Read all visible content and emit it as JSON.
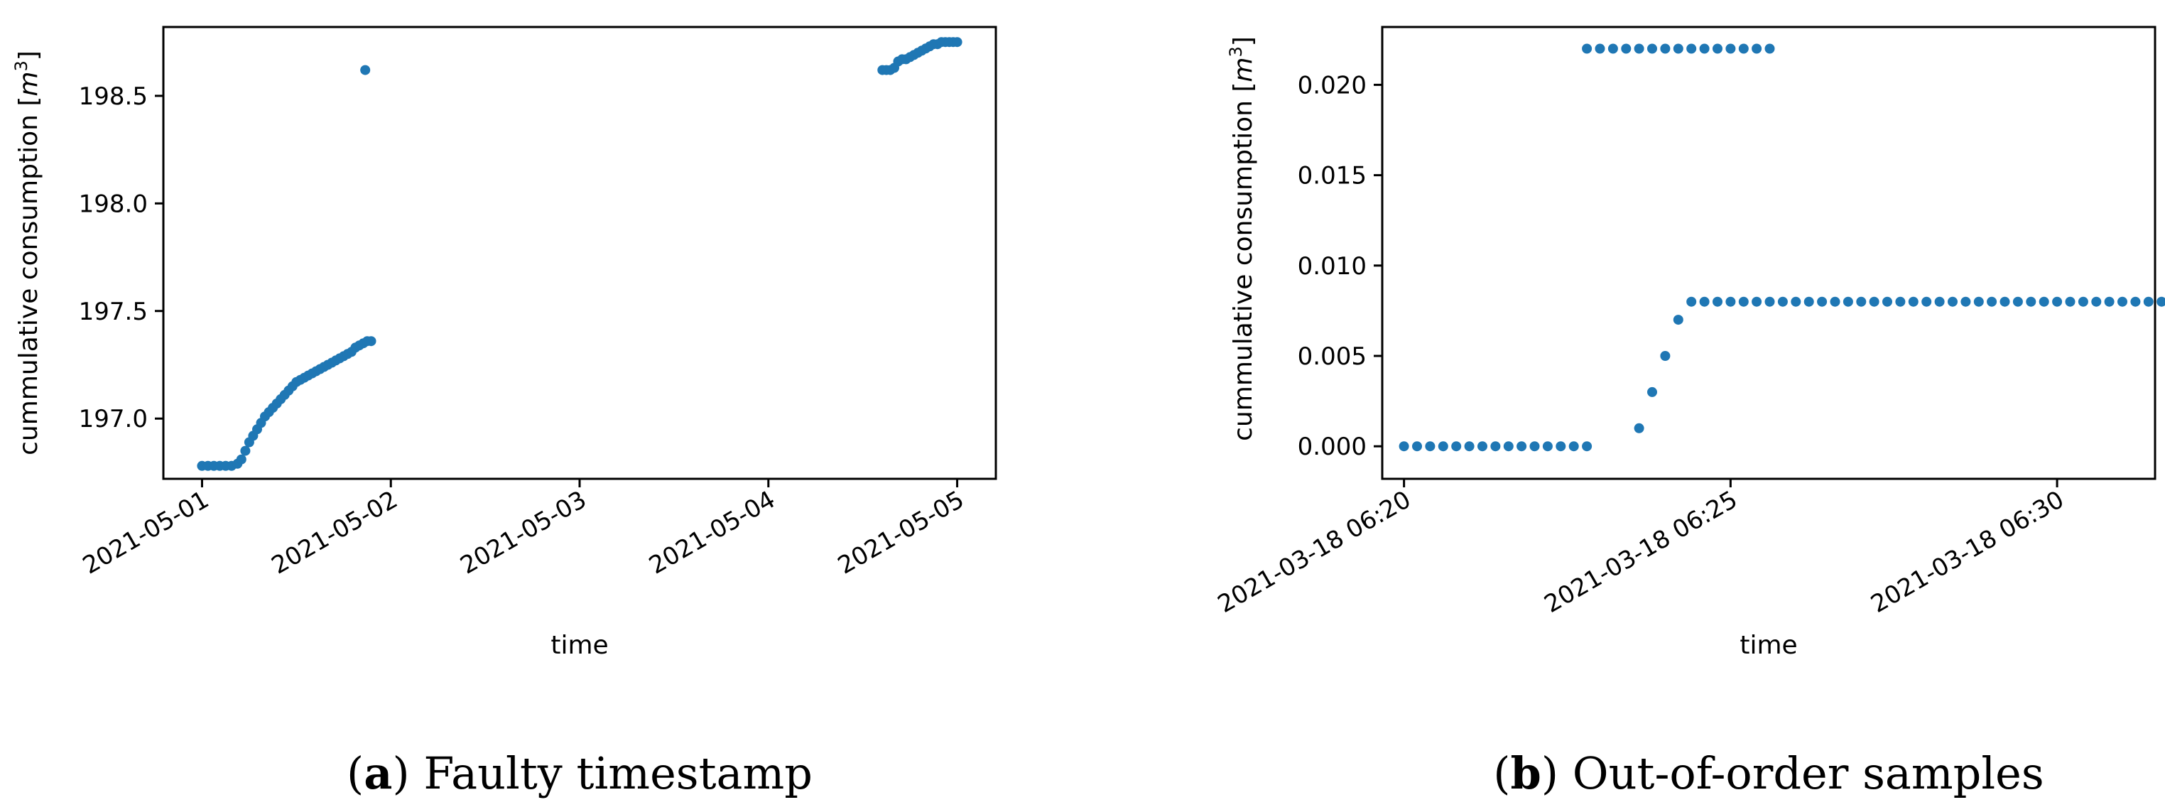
{
  "colors": {
    "marker": "#1f77b4"
  },
  "chart_data": [
    {
      "type": "scatter",
      "caption_letter": "a",
      "caption_text": "Faulty timestamp",
      "xlabel": "time",
      "ylabel_base": "cummulative consumption [",
      "ylabel_unit": "m",
      "ylabel_exp": "3",
      "ylabel_close": "]",
      "xlim": [
        "2021-04-30T19:05",
        "2021-05-05T04:55"
      ],
      "ylim": [
        196.72,
        198.82
      ],
      "xticks": [
        {
          "value": "2021-05-01T00:00",
          "label": "2021-05-01"
        },
        {
          "value": "2021-05-02T00:00",
          "label": "2021-05-02"
        },
        {
          "value": "2021-05-03T00:00",
          "label": "2021-05-03"
        },
        {
          "value": "2021-05-04T00:00",
          "label": "2021-05-04"
        },
        {
          "value": "2021-05-05T00:00",
          "label": "2021-05-05"
        }
      ],
      "yticks": [
        {
          "value": 197.0,
          "label": "197.0"
        },
        {
          "value": 197.5,
          "label": "197.5"
        },
        {
          "value": 198.0,
          "label": "198.0"
        },
        {
          "value": 198.5,
          "label": "198.5"
        }
      ],
      "points": [
        [
          "2021-05-01T00:00",
          196.78
        ],
        [
          "2021-05-01T00:45",
          196.78
        ],
        [
          "2021-05-01T01:30",
          196.78
        ],
        [
          "2021-05-01T02:15",
          196.78
        ],
        [
          "2021-05-01T03:00",
          196.78
        ],
        [
          "2021-05-01T03:45",
          196.78
        ],
        [
          "2021-05-01T04:30",
          196.79
        ],
        [
          "2021-05-01T05:00",
          196.81
        ],
        [
          "2021-05-01T05:30",
          196.85
        ],
        [
          "2021-05-01T06:00",
          196.89
        ],
        [
          "2021-05-01T06:30",
          196.92
        ],
        [
          "2021-05-01T07:00",
          196.95
        ],
        [
          "2021-05-01T07:30",
          196.98
        ],
        [
          "2021-05-01T08:00",
          197.01
        ],
        [
          "2021-05-01T08:30",
          197.03
        ],
        [
          "2021-05-01T09:00",
          197.05
        ],
        [
          "2021-05-01T09:30",
          197.07
        ],
        [
          "2021-05-01T10:00",
          197.09
        ],
        [
          "2021-05-01T10:30",
          197.11
        ],
        [
          "2021-05-01T11:00",
          197.13
        ],
        [
          "2021-05-01T11:30",
          197.15
        ],
        [
          "2021-05-01T12:00",
          197.17
        ],
        [
          "2021-05-01T12:30",
          197.18
        ],
        [
          "2021-05-01T13:00",
          197.19
        ],
        [
          "2021-05-01T13:30",
          197.2
        ],
        [
          "2021-05-01T14:00",
          197.21
        ],
        [
          "2021-05-01T14:30",
          197.22
        ],
        [
          "2021-05-01T15:00",
          197.23
        ],
        [
          "2021-05-01T15:30",
          197.24
        ],
        [
          "2021-05-01T16:00",
          197.25
        ],
        [
          "2021-05-01T16:30",
          197.26
        ],
        [
          "2021-05-01T17:00",
          197.27
        ],
        [
          "2021-05-01T17:30",
          197.28
        ],
        [
          "2021-05-01T18:00",
          197.29
        ],
        [
          "2021-05-01T18:30",
          197.3
        ],
        [
          "2021-05-01T19:00",
          197.31
        ],
        [
          "2021-05-01T19:30",
          197.33
        ],
        [
          "2021-05-01T20:00",
          197.34
        ],
        [
          "2021-05-01T20:30",
          197.35
        ],
        [
          "2021-05-01T21:00",
          197.36
        ],
        [
          "2021-05-01T21:30",
          197.36
        ],
        [
          "2021-05-01T20:45",
          198.62
        ],
        [
          "2021-05-04T14:30",
          198.62
        ],
        [
          "2021-05-04T15:00",
          198.62
        ],
        [
          "2021-05-04T15:30",
          198.62
        ],
        [
          "2021-05-04T16:00",
          198.63
        ],
        [
          "2021-05-04T16:30",
          198.66
        ],
        [
          "2021-05-04T17:00",
          198.67
        ],
        [
          "2021-05-04T17:30",
          198.67
        ],
        [
          "2021-05-04T18:00",
          198.68
        ],
        [
          "2021-05-04T18:30",
          198.69
        ],
        [
          "2021-05-04T19:00",
          198.7
        ],
        [
          "2021-05-04T19:30",
          198.71
        ],
        [
          "2021-05-04T20:00",
          198.72
        ],
        [
          "2021-05-04T20:30",
          198.73
        ],
        [
          "2021-05-04T21:00",
          198.74
        ],
        [
          "2021-05-04T21:30",
          198.74
        ],
        [
          "2021-05-04T22:00",
          198.75
        ],
        [
          "2021-05-04T22:30",
          198.75
        ],
        [
          "2021-05-04T23:00",
          198.75
        ],
        [
          "2021-05-04T23:30",
          198.75
        ],
        [
          "2021-05-05T00:00",
          198.75
        ]
      ]
    },
    {
      "type": "scatter",
      "caption_letter": "b",
      "caption_text": "Out-of-order samples",
      "xlabel": "time",
      "ylabel_base": "cummulative consumption [",
      "ylabel_unit": "m",
      "ylabel_exp": "3",
      "ylabel_close": "]",
      "xlim": [
        "2021-03-18T06:19:40",
        "2021-03-18T06:31:30"
      ],
      "ylim": [
        -0.0018,
        0.0232
      ],
      "xticks": [
        {
          "value": "2021-03-18T06:20:00",
          "label": "2021-03-18 06:20"
        },
        {
          "value": "2021-03-18T06:25:00",
          "label": "2021-03-18 06:25"
        },
        {
          "value": "2021-03-18T06:30:00",
          "label": "2021-03-18 06:30"
        }
      ],
      "yticks": [
        {
          "value": 0.0,
          "label": "0.000"
        },
        {
          "value": 0.005,
          "label": "0.005"
        },
        {
          "value": 0.01,
          "label": "0.010"
        },
        {
          "value": 0.015,
          "label": "0.015"
        },
        {
          "value": 0.02,
          "label": "0.020"
        }
      ],
      "segments": [
        {
          "start": "2021-03-18T06:20:00",
          "step_seconds": 12,
          "count": 15,
          "value": 0.0
        },
        {
          "start": "2021-03-18T06:23:36",
          "step_seconds": 12,
          "count": 1,
          "value": 0.001
        },
        {
          "start": "2021-03-18T06:23:48",
          "step_seconds": 12,
          "count": 1,
          "value": 0.003
        },
        {
          "start": "2021-03-18T06:24:00",
          "step_seconds": 12,
          "count": 1,
          "value": 0.005
        },
        {
          "start": "2021-03-18T06:24:12",
          "step_seconds": 12,
          "count": 1,
          "value": 0.007
        },
        {
          "start": "2021-03-18T06:24:24",
          "step_seconds": 12,
          "count": 37,
          "value": 0.008
        },
        {
          "start": "2021-03-18T06:22:48",
          "step_seconds": 12,
          "count": 15,
          "value": 0.022
        }
      ]
    }
  ]
}
